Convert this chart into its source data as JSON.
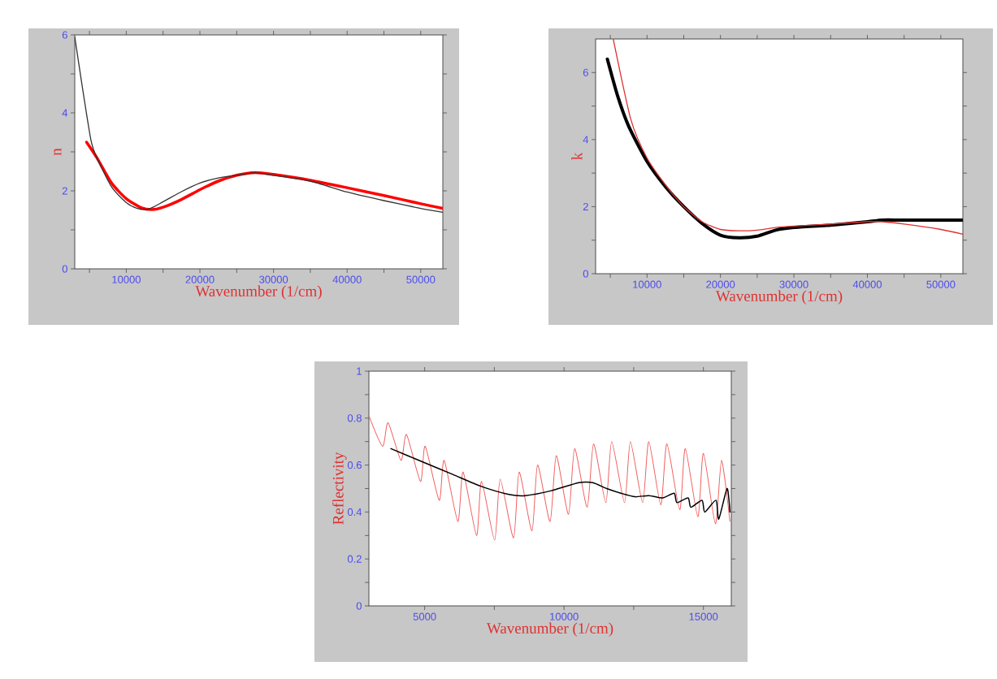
{
  "chart_data": [
    {
      "type": "line",
      "xlabel": "Wavenumber (1/cm)",
      "ylabel": "n",
      "xlim": [
        3000,
        53000
      ],
      "ylim": [
        0,
        6
      ],
      "xticks": [
        {
          "value": 5000,
          "label": null
        },
        10000,
        {
          "value": 15000,
          "label": null
        },
        20000,
        {
          "value": 25000,
          "label": null
        },
        30000,
        {
          "value": 35000,
          "label": null
        },
        40000,
        {
          "value": 45000,
          "label": null
        },
        50000
      ],
      "yticks": [
        0,
        {
          "value": 1,
          "label": null
        },
        2,
        {
          "value": 3,
          "label": null
        },
        4,
        {
          "value": 5,
          "label": null
        },
        6
      ],
      "series": [
        {
          "color": "#ff0000",
          "x": [
            4600,
            6000,
            8000,
            10000,
            12000,
            13500,
            15000,
            17500,
            20000,
            22500,
            25000,
            27500,
            30000,
            35000,
            40000,
            45000,
            50000,
            53000
          ],
          "values": [
            3.25,
            2.85,
            2.2,
            1.8,
            1.57,
            1.52,
            1.58,
            1.78,
            2.03,
            2.25,
            2.4,
            2.47,
            2.42,
            2.27,
            2.08,
            1.88,
            1.67,
            1.55
          ]
        },
        {
          "color": "#333333",
          "x": [
            3000,
            4000,
            5200,
            6000,
            8000,
            10000,
            11500,
            13000,
            15000,
            17500,
            20000,
            22500,
            25000,
            27500,
            30000,
            35000,
            40000,
            45000,
            50000,
            53000
          ],
          "values": [
            5.95,
            4.7,
            3.3,
            2.85,
            2.1,
            1.7,
            1.55,
            1.53,
            1.72,
            1.98,
            2.2,
            2.33,
            2.4,
            2.46,
            2.4,
            2.25,
            1.97,
            1.75,
            1.55,
            1.45
          ]
        }
      ]
    },
    {
      "type": "line",
      "xlabel": "Wavenumber (1/cm)",
      "ylabel": "k",
      "xlim": [
        3000,
        53000
      ],
      "ylim": [
        0,
        7
      ],
      "xticks": [
        {
          "value": 5000,
          "label": null
        },
        10000,
        {
          "value": 15000,
          "label": null
        },
        20000,
        {
          "value": 25000,
          "label": null
        },
        30000,
        {
          "value": 35000,
          "label": null
        },
        40000,
        {
          "value": 45000,
          "label": null
        },
        50000
      ],
      "yticks": [
        0,
        {
          "value": 1,
          "label": null
        },
        2,
        {
          "value": 3,
          "label": null
        },
        4,
        {
          "value": 5,
          "label": null
        },
        6
      ],
      "series": [
        {
          "color": "#000000",
          "x": [
            4600,
            6000,
            7500,
            10000,
            12500,
            15000,
            17500,
            20000,
            22500,
            25000,
            27500,
            30000,
            35000,
            40000,
            42000,
            45000,
            53000
          ],
          "values": [
            6.4,
            5.3,
            4.4,
            3.35,
            2.6,
            2.0,
            1.5,
            1.15,
            1.07,
            1.12,
            1.3,
            1.38,
            1.45,
            1.55,
            1.6,
            1.6,
            1.6
          ]
        },
        {
          "color": "#e03030",
          "x": [
            5400,
            7800,
            10000,
            12500,
            15000,
            17500,
            20000,
            22500,
            25000,
            27500,
            30000,
            35000,
            40000,
            42000,
            45000,
            50000,
            53000
          ],
          "values": [
            7.0,
            4.6,
            3.45,
            2.65,
            2.0,
            1.55,
            1.32,
            1.28,
            1.3,
            1.38,
            1.42,
            1.48,
            1.55,
            1.55,
            1.48,
            1.32,
            1.18
          ]
        }
      ]
    },
    {
      "type": "line",
      "xlabel": "Wavenumber (1/cm)",
      "ylabel": "Reflectivity",
      "xlim": [
        3000,
        16000
      ],
      "ylim": [
        0,
        1
      ],
      "xticks": [
        5000,
        {
          "value": 7500,
          "label": null
        },
        10000,
        {
          "value": 12500,
          "label": null
        },
        15000
      ],
      "yticks": [
        0,
        {
          "value": 0.1,
          "label": null
        },
        0.2,
        {
          "value": 0.3,
          "label": null
        },
        0.4,
        {
          "value": 0.5,
          "label": null
        },
        0.6,
        {
          "value": 0.7,
          "label": null
        },
        0.8,
        {
          "value": 0.9,
          "label": null
        },
        1
      ],
      "series": [
        {
          "color": "#f06060",
          "x": [
            3000,
            3490,
            3690,
            4150,
            4350,
            4850,
            5020,
            5520,
            5700,
            6190,
            6380,
            6860,
            7040,
            7510,
            7710,
            8190,
            8390,
            8850,
            9050,
            9500,
            9720,
            10160,
            10380,
            10830,
            11060,
            11500,
            11710,
            12170,
            12380,
            12820,
            13040,
            13470,
            13690,
            14150,
            14350,
            14800,
            15000,
            15430,
            15650,
            15950
          ],
          "values": [
            0.81,
            0.68,
            0.78,
            0.62,
            0.73,
            0.53,
            0.68,
            0.45,
            0.62,
            0.36,
            0.57,
            0.3,
            0.53,
            0.28,
            0.54,
            0.29,
            0.57,
            0.32,
            0.6,
            0.36,
            0.64,
            0.39,
            0.67,
            0.42,
            0.69,
            0.44,
            0.7,
            0.44,
            0.7,
            0.44,
            0.7,
            0.43,
            0.69,
            0.41,
            0.67,
            0.38,
            0.65,
            0.35,
            0.62,
            0.36
          ]
        },
        {
          "color": "#000000",
          "x": [
            3790,
            5000,
            6010,
            7010,
            8020,
            8620,
            9520,
            10530,
            11030,
            11530,
            12040,
            12540,
            13040,
            13540,
            13950,
            14050,
            14450,
            14550,
            14950,
            15050,
            15450,
            15550,
            15850,
            15950
          ],
          "values": [
            0.67,
            0.61,
            0.56,
            0.51,
            0.475,
            0.47,
            0.49,
            0.525,
            0.525,
            0.5,
            0.48,
            0.465,
            0.47,
            0.46,
            0.48,
            0.44,
            0.46,
            0.42,
            0.45,
            0.4,
            0.45,
            0.37,
            0.5,
            0.4
          ]
        }
      ]
    }
  ]
}
